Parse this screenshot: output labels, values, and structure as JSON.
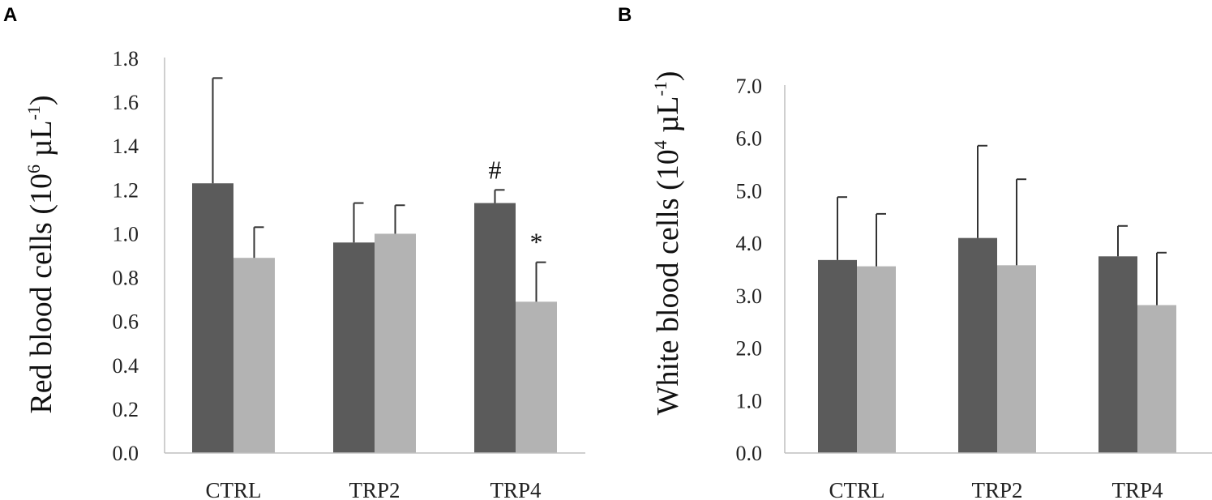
{
  "colors": {
    "series_dark": "#5b5b5b",
    "series_light": "#b3b3b3"
  },
  "chart_data": [
    {
      "panel": "A",
      "type": "bar",
      "ylabel": {
        "main": "Red blood cells (10",
        "sup1": "6",
        "mid": " µL",
        "sup2": "-1",
        "end": ")"
      },
      "categories": [
        "CTRL",
        "TRP2",
        "TRP4"
      ],
      "ylim": [
        0,
        1.8
      ],
      "yticks": [
        "0.0",
        "0.2",
        "0.4",
        "0.6",
        "0.8",
        "1.0",
        "1.2",
        "1.4",
        "1.6",
        "1.8"
      ],
      "tick_values": [
        0,
        0.2,
        0.4,
        0.6,
        0.8,
        1.0,
        1.2,
        1.4,
        1.6,
        1.8
      ],
      "series": [
        {
          "name": "dark",
          "values": [
            1.23,
            0.96,
            1.14
          ],
          "errors": [
            0.48,
            0.18,
            0.06
          ]
        },
        {
          "name": "light",
          "values": [
            0.89,
            1.0,
            0.69
          ],
          "errors": [
            0.14,
            0.13,
            0.18
          ]
        }
      ],
      "annotations": [
        {
          "text": "#",
          "category": 2,
          "series": 0
        },
        {
          "text": "*",
          "category": 2,
          "series": 1
        }
      ]
    },
    {
      "panel": "B",
      "type": "bar",
      "ylabel": {
        "main": "White blood cells (10",
        "sup1": "4",
        "mid": " µL",
        "sup2": "-1",
        "end": ")"
      },
      "categories": [
        "CTRL",
        "TRP2",
        "TRP4"
      ],
      "ylim": [
        0,
        7.0
      ],
      "yticks": [
        "0.0",
        "1.0",
        "2.0",
        "3.0",
        "4.0",
        "5.0",
        "6.0",
        "7.0"
      ],
      "tick_values": [
        0,
        1,
        2,
        3,
        4,
        5,
        6,
        7
      ],
      "series": [
        {
          "name": "dark",
          "values": [
            3.68,
            4.1,
            3.75
          ],
          "errors": [
            1.2,
            1.76,
            0.58
          ]
        },
        {
          "name": "light",
          "values": [
            3.56,
            3.58,
            2.82
          ],
          "errors": [
            1.0,
            1.64,
            1.0
          ]
        }
      ],
      "annotations": []
    }
  ]
}
